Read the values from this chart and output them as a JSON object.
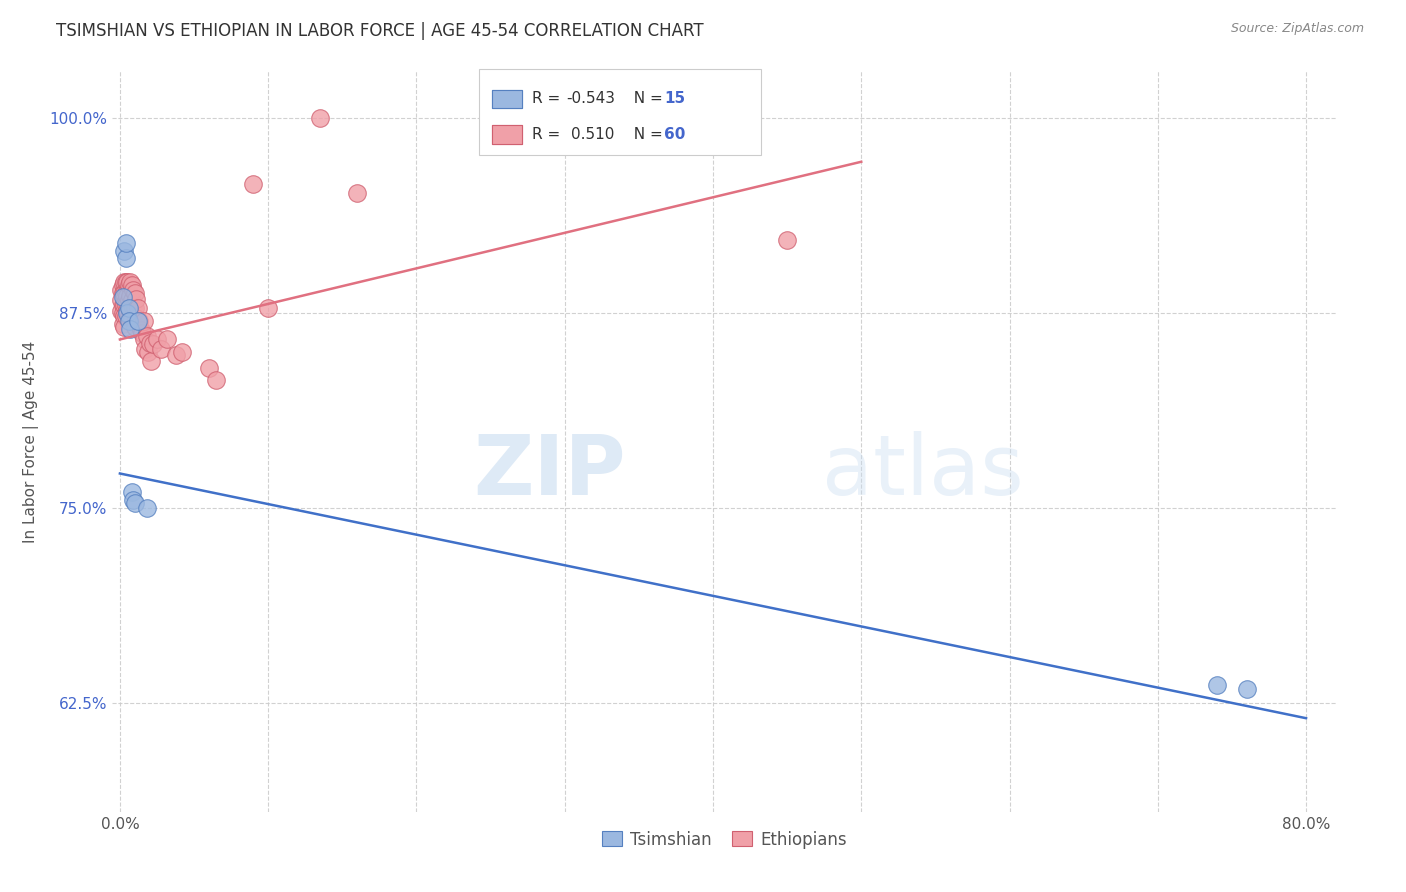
{
  "title": "TSIMSHIAN VS ETHIOPIAN IN LABOR FORCE | AGE 45-54 CORRELATION CHART",
  "source": "Source: ZipAtlas.com",
  "ylabel": "In Labor Force | Age 45-54",
  "xlim": [
    -0.005,
    0.82
  ],
  "ylim": [
    0.555,
    1.03
  ],
  "xticks": [
    0.0,
    0.1,
    0.2,
    0.3,
    0.4,
    0.5,
    0.6,
    0.7,
    0.8
  ],
  "xticklabels": [
    "0.0%",
    "",
    "",
    "",
    "",
    "",
    "",
    "",
    "80.0%"
  ],
  "yticks": [
    0.625,
    0.75,
    0.875,
    1.0
  ],
  "yticklabels": [
    "62.5%",
    "75.0%",
    "87.5%",
    "100.0%"
  ],
  "watermark_zip": "ZIP",
  "watermark_atlas": "atlas",
  "legend_tsimshian": "Tsimshian",
  "legend_ethiopian": "Ethiopians",
  "R_tsimshian": "-0.543",
  "N_tsimshian": "15",
  "R_ethiopian": "0.510",
  "N_ethiopian": "60",
  "tsimshian_fill": "#9BB8E0",
  "tsimshian_edge": "#5580C0",
  "ethiopian_fill": "#F0A0A8",
  "ethiopian_edge": "#D06070",
  "tsimshian_line_color": "#4070C8",
  "ethiopian_line_color": "#E07080",
  "tsimshian_x": [
    0.002,
    0.003,
    0.004,
    0.004,
    0.005,
    0.006,
    0.006,
    0.007,
    0.008,
    0.009,
    0.01,
    0.012,
    0.018,
    0.74,
    0.76
  ],
  "tsimshian_y": [
    0.885,
    0.915,
    0.91,
    0.92,
    0.875,
    0.878,
    0.87,
    0.865,
    0.76,
    0.755,
    0.753,
    0.87,
    0.75,
    0.636,
    0.634
  ],
  "ethiopian_x": [
    0.001,
    0.001,
    0.001,
    0.002,
    0.002,
    0.002,
    0.002,
    0.002,
    0.003,
    0.003,
    0.003,
    0.003,
    0.003,
    0.004,
    0.004,
    0.004,
    0.004,
    0.005,
    0.005,
    0.005,
    0.006,
    0.006,
    0.006,
    0.007,
    0.007,
    0.007,
    0.008,
    0.008,
    0.008,
    0.009,
    0.009,
    0.01,
    0.01,
    0.01,
    0.011,
    0.011,
    0.012,
    0.013,
    0.014,
    0.015,
    0.016,
    0.016,
    0.017,
    0.018,
    0.019,
    0.02,
    0.021,
    0.022,
    0.025,
    0.028,
    0.032,
    0.038,
    0.042,
    0.06,
    0.065,
    0.09,
    0.1,
    0.135,
    0.16,
    0.45
  ],
  "ethiopian_y": [
    0.89,
    0.883,
    0.876,
    0.893,
    0.888,
    0.88,
    0.875,
    0.868,
    0.895,
    0.888,
    0.88,
    0.873,
    0.866,
    0.895,
    0.888,
    0.88,
    0.873,
    0.895,
    0.886,
    0.877,
    0.893,
    0.883,
    0.873,
    0.895,
    0.886,
    0.876,
    0.893,
    0.883,
    0.872,
    0.89,
    0.878,
    0.888,
    0.878,
    0.866,
    0.884,
    0.872,
    0.878,
    0.87,
    0.864,
    0.862,
    0.87,
    0.858,
    0.852,
    0.86,
    0.85,
    0.856,
    0.844,
    0.855,
    0.858,
    0.852,
    0.858,
    0.848,
    0.85,
    0.84,
    0.832,
    0.958,
    0.878,
    1.0,
    0.952,
    0.922
  ],
  "tsim_trend_x": [
    0.0,
    0.8
  ],
  "tsim_trend_y": [
    0.772,
    0.615
  ],
  "eth_trend_x": [
    0.0,
    0.5
  ],
  "eth_trend_y": [
    0.858,
    0.972
  ]
}
